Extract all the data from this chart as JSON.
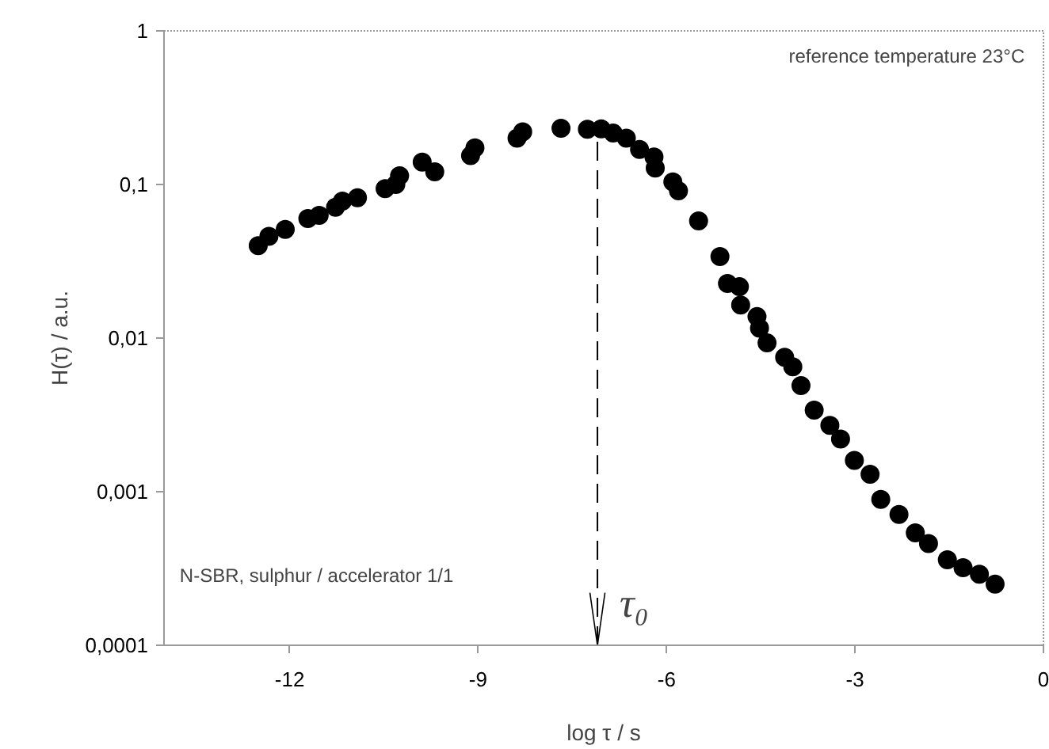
{
  "chart_data": {
    "type": "scatter",
    "xlabel": "log τ / s",
    "ylabel": "H(τ) / a.u.",
    "log": "y",
    "xlim": [
      -14,
      0
    ],
    "ylim": [
      0.0001,
      1
    ],
    "xticks": [
      -12,
      -9,
      -6,
      -3,
      0
    ],
    "yticks": [
      {
        "value": 1,
        "label": "1"
      },
      {
        "value": 0.1,
        "label": "0,1"
      },
      {
        "value": 0.01,
        "label": "0,01"
      },
      {
        "value": 0.001,
        "label": "0,001"
      },
      {
        "value": 0.0001,
        "label": "0,0001"
      }
    ],
    "grid": false,
    "marker": "circle",
    "series": [
      {
        "color": "#000000",
        "x": [
          -12.5,
          -12.33,
          -12.07,
          -11.71,
          -11.53,
          -11.27,
          -11.16,
          -10.92,
          -10.48,
          -10.31,
          -10.25,
          -9.89,
          -9.69,
          -9.12,
          -9.05,
          -8.38,
          -8.29,
          -7.68,
          -7.26,
          -7.04,
          -6.85,
          -6.64,
          -6.43,
          -6.2,
          -6.18,
          -5.9,
          -5.81,
          -5.49,
          -5.15,
          -5.03,
          -4.84,
          -4.82,
          -4.56,
          -4.52,
          -4.4,
          -4.12,
          -3.99,
          -3.86,
          -3.65,
          -3.4,
          -3.23,
          -3.01,
          -2.76,
          -2.59,
          -2.3,
          -2.04,
          -1.83,
          -1.53,
          -1.28,
          -1.02,
          -0.77
        ],
        "values": [
          0.04,
          0.046,
          0.051,
          0.06,
          0.063,
          0.071,
          0.078,
          0.082,
          0.094,
          0.1,
          0.114,
          0.14,
          0.121,
          0.154,
          0.173,
          0.2,
          0.22,
          0.232,
          0.229,
          0.23,
          0.216,
          0.2,
          0.169,
          0.151,
          0.128,
          0.104,
          0.091,
          0.058,
          0.034,
          0.0227,
          0.0216,
          0.0164,
          0.0138,
          0.0116,
          0.0093,
          0.0075,
          0.0065,
          0.0049,
          0.0034,
          0.0027,
          0.0022,
          0.0016,
          0.0013,
          0.00089,
          0.00071,
          0.00054,
          0.00046,
          0.00036,
          0.00032,
          0.00029,
          0.00025
        ]
      }
    ],
    "ref_lines": [
      {
        "axis": "x",
        "value": -7.1,
        "label": "τ₀",
        "line_style": "dashed"
      }
    ],
    "annotations": [
      "reference temperature 23°C",
      "N-SBR, sulphur / accelerator 1/1"
    ]
  }
}
